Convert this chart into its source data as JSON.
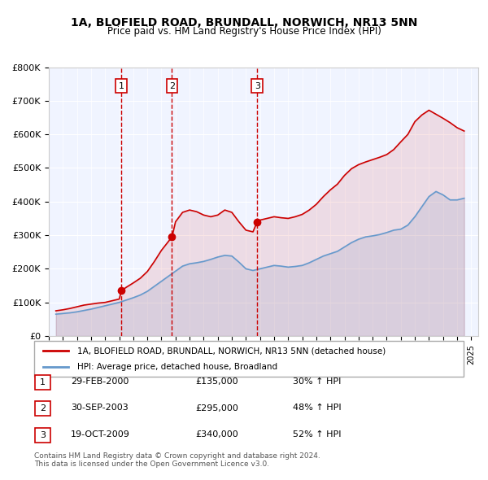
{
  "title": "1A, BLOFIELD ROAD, BRUNDALL, NORWICH, NR13 5NN",
  "subtitle": "Price paid vs. HM Land Registry's House Price Index (HPI)",
  "legend_label_red": "1A, BLOFIELD ROAD, BRUNDALL, NORWICH, NR13 5NN (detached house)",
  "legend_label_blue": "HPI: Average price, detached house, Broadland",
  "footer": "Contains HM Land Registry data © Crown copyright and database right 2024.\nThis data is licensed under the Open Government Licence v3.0.",
  "sale_markers": [
    {
      "label": "1",
      "date": 2000.16,
      "price": 135000,
      "hpi_pct": "30%",
      "date_str": "29-FEB-2000",
      "price_str": "£135,000"
    },
    {
      "label": "2",
      "date": 2003.75,
      "price": 295000,
      "hpi_pct": "48%",
      "date_str": "30-SEP-2003",
      "price_str": "£295,000"
    },
    {
      "label": "3",
      "date": 2009.8,
      "price": 340000,
      "hpi_pct": "52%",
      "date_str": "19-OCT-2009",
      "price_str": "£340,000"
    }
  ],
  "table_rows": [
    [
      "1",
      "29-FEB-2000",
      "£135,000",
      "30% ↑ HPI"
    ],
    [
      "2",
      "30-SEP-2003",
      "£295,000",
      "48% ↑ HPI"
    ],
    [
      "3",
      "19-OCT-2009",
      "£340,000",
      "52% ↑ HPI"
    ]
  ],
  "red_color": "#cc0000",
  "blue_color": "#6699cc",
  "dashed_color": "#cc0000",
  "background_color": "#f0f4ff",
  "ylim": [
    0,
    800000
  ],
  "xlim_start": 1995.0,
  "xlim_end": 2025.5,
  "yticks": [
    0,
    100000,
    200000,
    300000,
    400000,
    500000,
    600000,
    700000,
    800000
  ],
  "ytick_labels": [
    "£0",
    "£100K",
    "£200K",
    "£300K",
    "£400K",
    "£500K",
    "£600K",
    "£700K",
    "£800K"
  ],
  "hpi_data": {
    "years": [
      1995.5,
      1996.0,
      1996.5,
      1997.0,
      1997.5,
      1998.0,
      1998.5,
      1999.0,
      1999.5,
      2000.0,
      2000.5,
      2001.0,
      2001.5,
      2002.0,
      2002.5,
      2003.0,
      2003.5,
      2004.0,
      2004.5,
      2005.0,
      2005.5,
      2006.0,
      2006.5,
      2007.0,
      2007.5,
      2008.0,
      2008.5,
      2009.0,
      2009.5,
      2010.0,
      2010.5,
      2011.0,
      2011.5,
      2012.0,
      2012.5,
      2013.0,
      2013.5,
      2014.0,
      2014.5,
      2015.0,
      2015.5,
      2016.0,
      2016.5,
      2017.0,
      2017.5,
      2018.0,
      2018.5,
      2019.0,
      2019.5,
      2020.0,
      2020.5,
      2021.0,
      2021.5,
      2022.0,
      2022.5,
      2023.0,
      2023.5,
      2024.0,
      2024.5
    ],
    "values": [
      65000,
      67000,
      69000,
      72000,
      76000,
      80000,
      85000,
      90000,
      95000,
      100000,
      107000,
      114000,
      122000,
      133000,
      148000,
      163000,
      178000,
      193000,
      208000,
      215000,
      218000,
      222000,
      228000,
      235000,
      240000,
      238000,
      220000,
      200000,
      195000,
      200000,
      205000,
      210000,
      208000,
      205000,
      207000,
      210000,
      218000,
      228000,
      238000,
      245000,
      252000,
      265000,
      278000,
      288000,
      295000,
      298000,
      302000,
      308000,
      315000,
      318000,
      330000,
      355000,
      385000,
      415000,
      430000,
      420000,
      405000,
      405000,
      410000
    ]
  },
  "price_data": {
    "years": [
      1995.5,
      1996.0,
      1996.5,
      1997.0,
      1997.5,
      1998.0,
      1998.5,
      1999.0,
      1999.5,
      2000.0,
      2000.16,
      2000.5,
      2001.0,
      2001.5,
      2002.0,
      2002.5,
      2003.0,
      2003.75,
      2004.0,
      2004.5,
      2005.0,
      2005.5,
      2006.0,
      2006.5,
      2007.0,
      2007.5,
      2008.0,
      2008.5,
      2009.0,
      2009.5,
      2009.8,
      2010.0,
      2010.5,
      2011.0,
      2011.5,
      2012.0,
      2012.5,
      2013.0,
      2013.5,
      2014.0,
      2014.5,
      2015.0,
      2015.5,
      2016.0,
      2016.5,
      2017.0,
      2017.5,
      2018.0,
      2018.5,
      2019.0,
      2019.5,
      2020.0,
      2020.5,
      2021.0,
      2021.5,
      2022.0,
      2022.5,
      2023.0,
      2023.5,
      2024.0,
      2024.5
    ],
    "values": [
      75000,
      78000,
      82000,
      87000,
      92000,
      95000,
      98000,
      100000,
      105000,
      110000,
      135000,
      145000,
      158000,
      172000,
      192000,
      222000,
      255000,
      295000,
      340000,
      368000,
      375000,
      370000,
      360000,
      355000,
      360000,
      375000,
      368000,
      340000,
      315000,
      310000,
      340000,
      345000,
      350000,
      355000,
      352000,
      350000,
      355000,
      362000,
      375000,
      392000,
      415000,
      435000,
      452000,
      478000,
      498000,
      510000,
      518000,
      525000,
      532000,
      540000,
      555000,
      578000,
      600000,
      638000,
      658000,
      672000,
      660000,
      648000,
      635000,
      620000,
      610000
    ]
  }
}
